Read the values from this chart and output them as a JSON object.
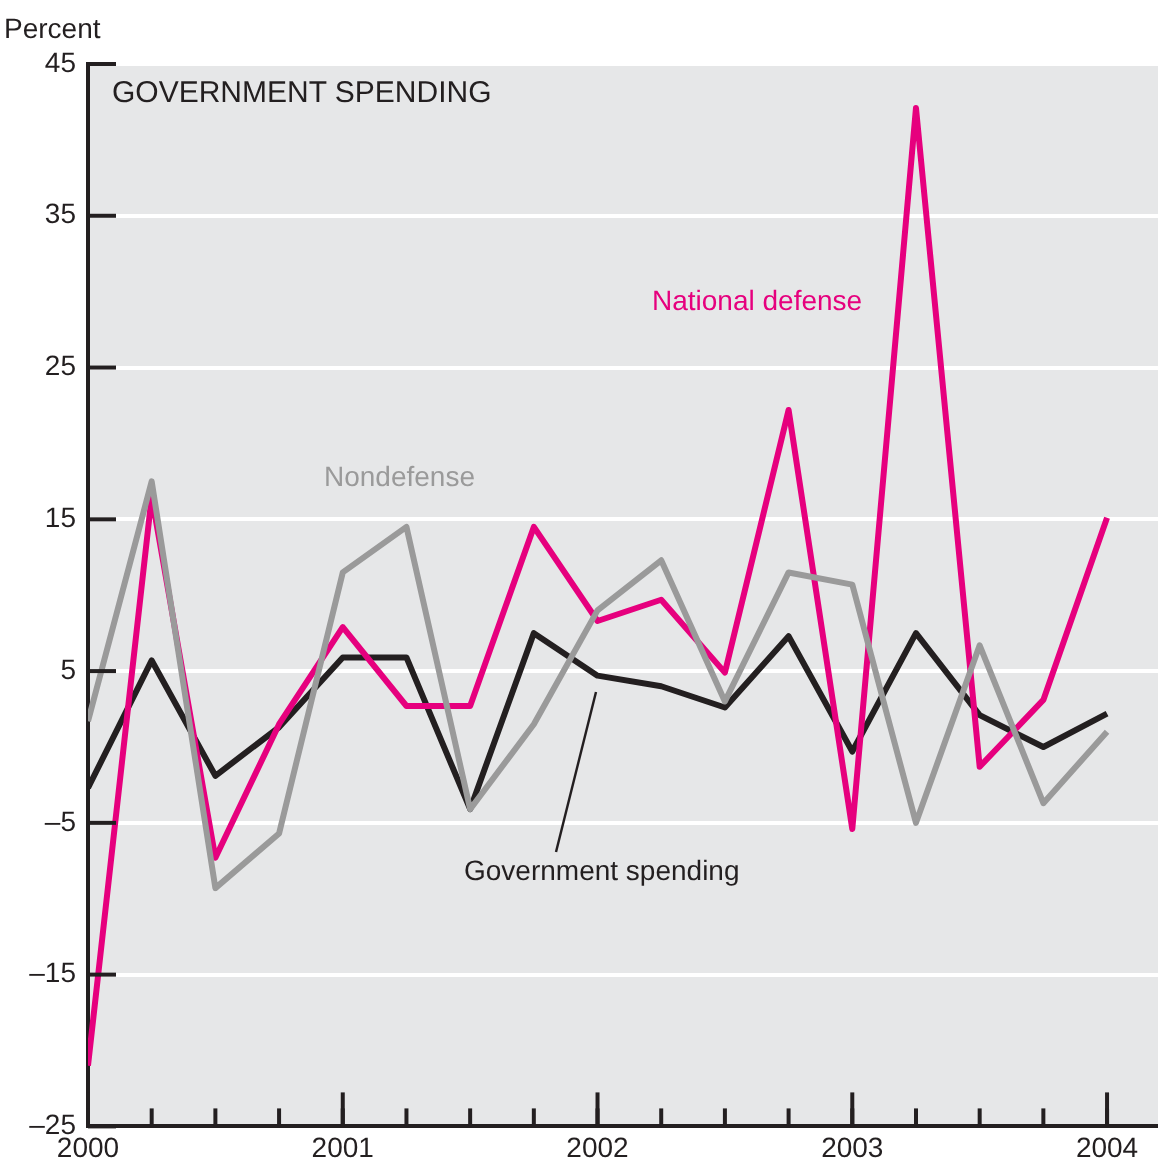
{
  "chart_data": {
    "type": "line",
    "title": "GOVERNMENT SPENDING",
    "ylabel": "Percent",
    "x": [
      2000,
      2000.25,
      2000.5,
      2000.75,
      2001,
      2001.25,
      2001.5,
      2001.75,
      2002,
      2002.25,
      2002.5,
      2002.75,
      2003,
      2003.25,
      2003.5,
      2003.75,
      2004
    ],
    "series": [
      {
        "name": "Nondefense",
        "color": "#9a9a9a",
        "values": [
          1.7,
          17.5,
          -9.3,
          -5.7,
          11.5,
          14.5,
          -4.1,
          1.5,
          9,
          12.3,
          3,
          11.5,
          10.7,
          -5,
          6.7,
          -3.7,
          1
        ]
      },
      {
        "name": "National defense",
        "color": "#e6007e",
        "values": [
          -21,
          16.5,
          -7.3,
          1.5,
          7.9,
          2.7,
          2.7,
          14.5,
          8.3,
          9.7,
          4.9,
          22.2,
          -5.4,
          42.1,
          -1.3,
          3.1,
          15.1
        ]
      },
      {
        "name": "Government spending",
        "color": "#231f20",
        "values": [
          -2.7,
          5.7,
          -1.9,
          1.3,
          5.9,
          5.9,
          -4.1,
          7.5,
          4.7,
          4,
          2.6,
          7.3,
          -0.3,
          7.5,
          2.1,
          0,
          2.2
        ]
      }
    ],
    "xlim": [
      2000,
      2004.2
    ],
    "xticks": [
      2000,
      2001,
      2002,
      2003,
      2004
    ],
    "ylim": [
      -25,
      45
    ],
    "yticks": [
      {
        "value": -25,
        "label": "–25"
      },
      {
        "value": -15,
        "label": "–15"
      },
      {
        "value": -5,
        "label": "–5"
      },
      5,
      15,
      25,
      35,
      45
    ],
    "grid": "y",
    "legend": false,
    "marker": "none",
    "line_style": "solid"
  }
}
